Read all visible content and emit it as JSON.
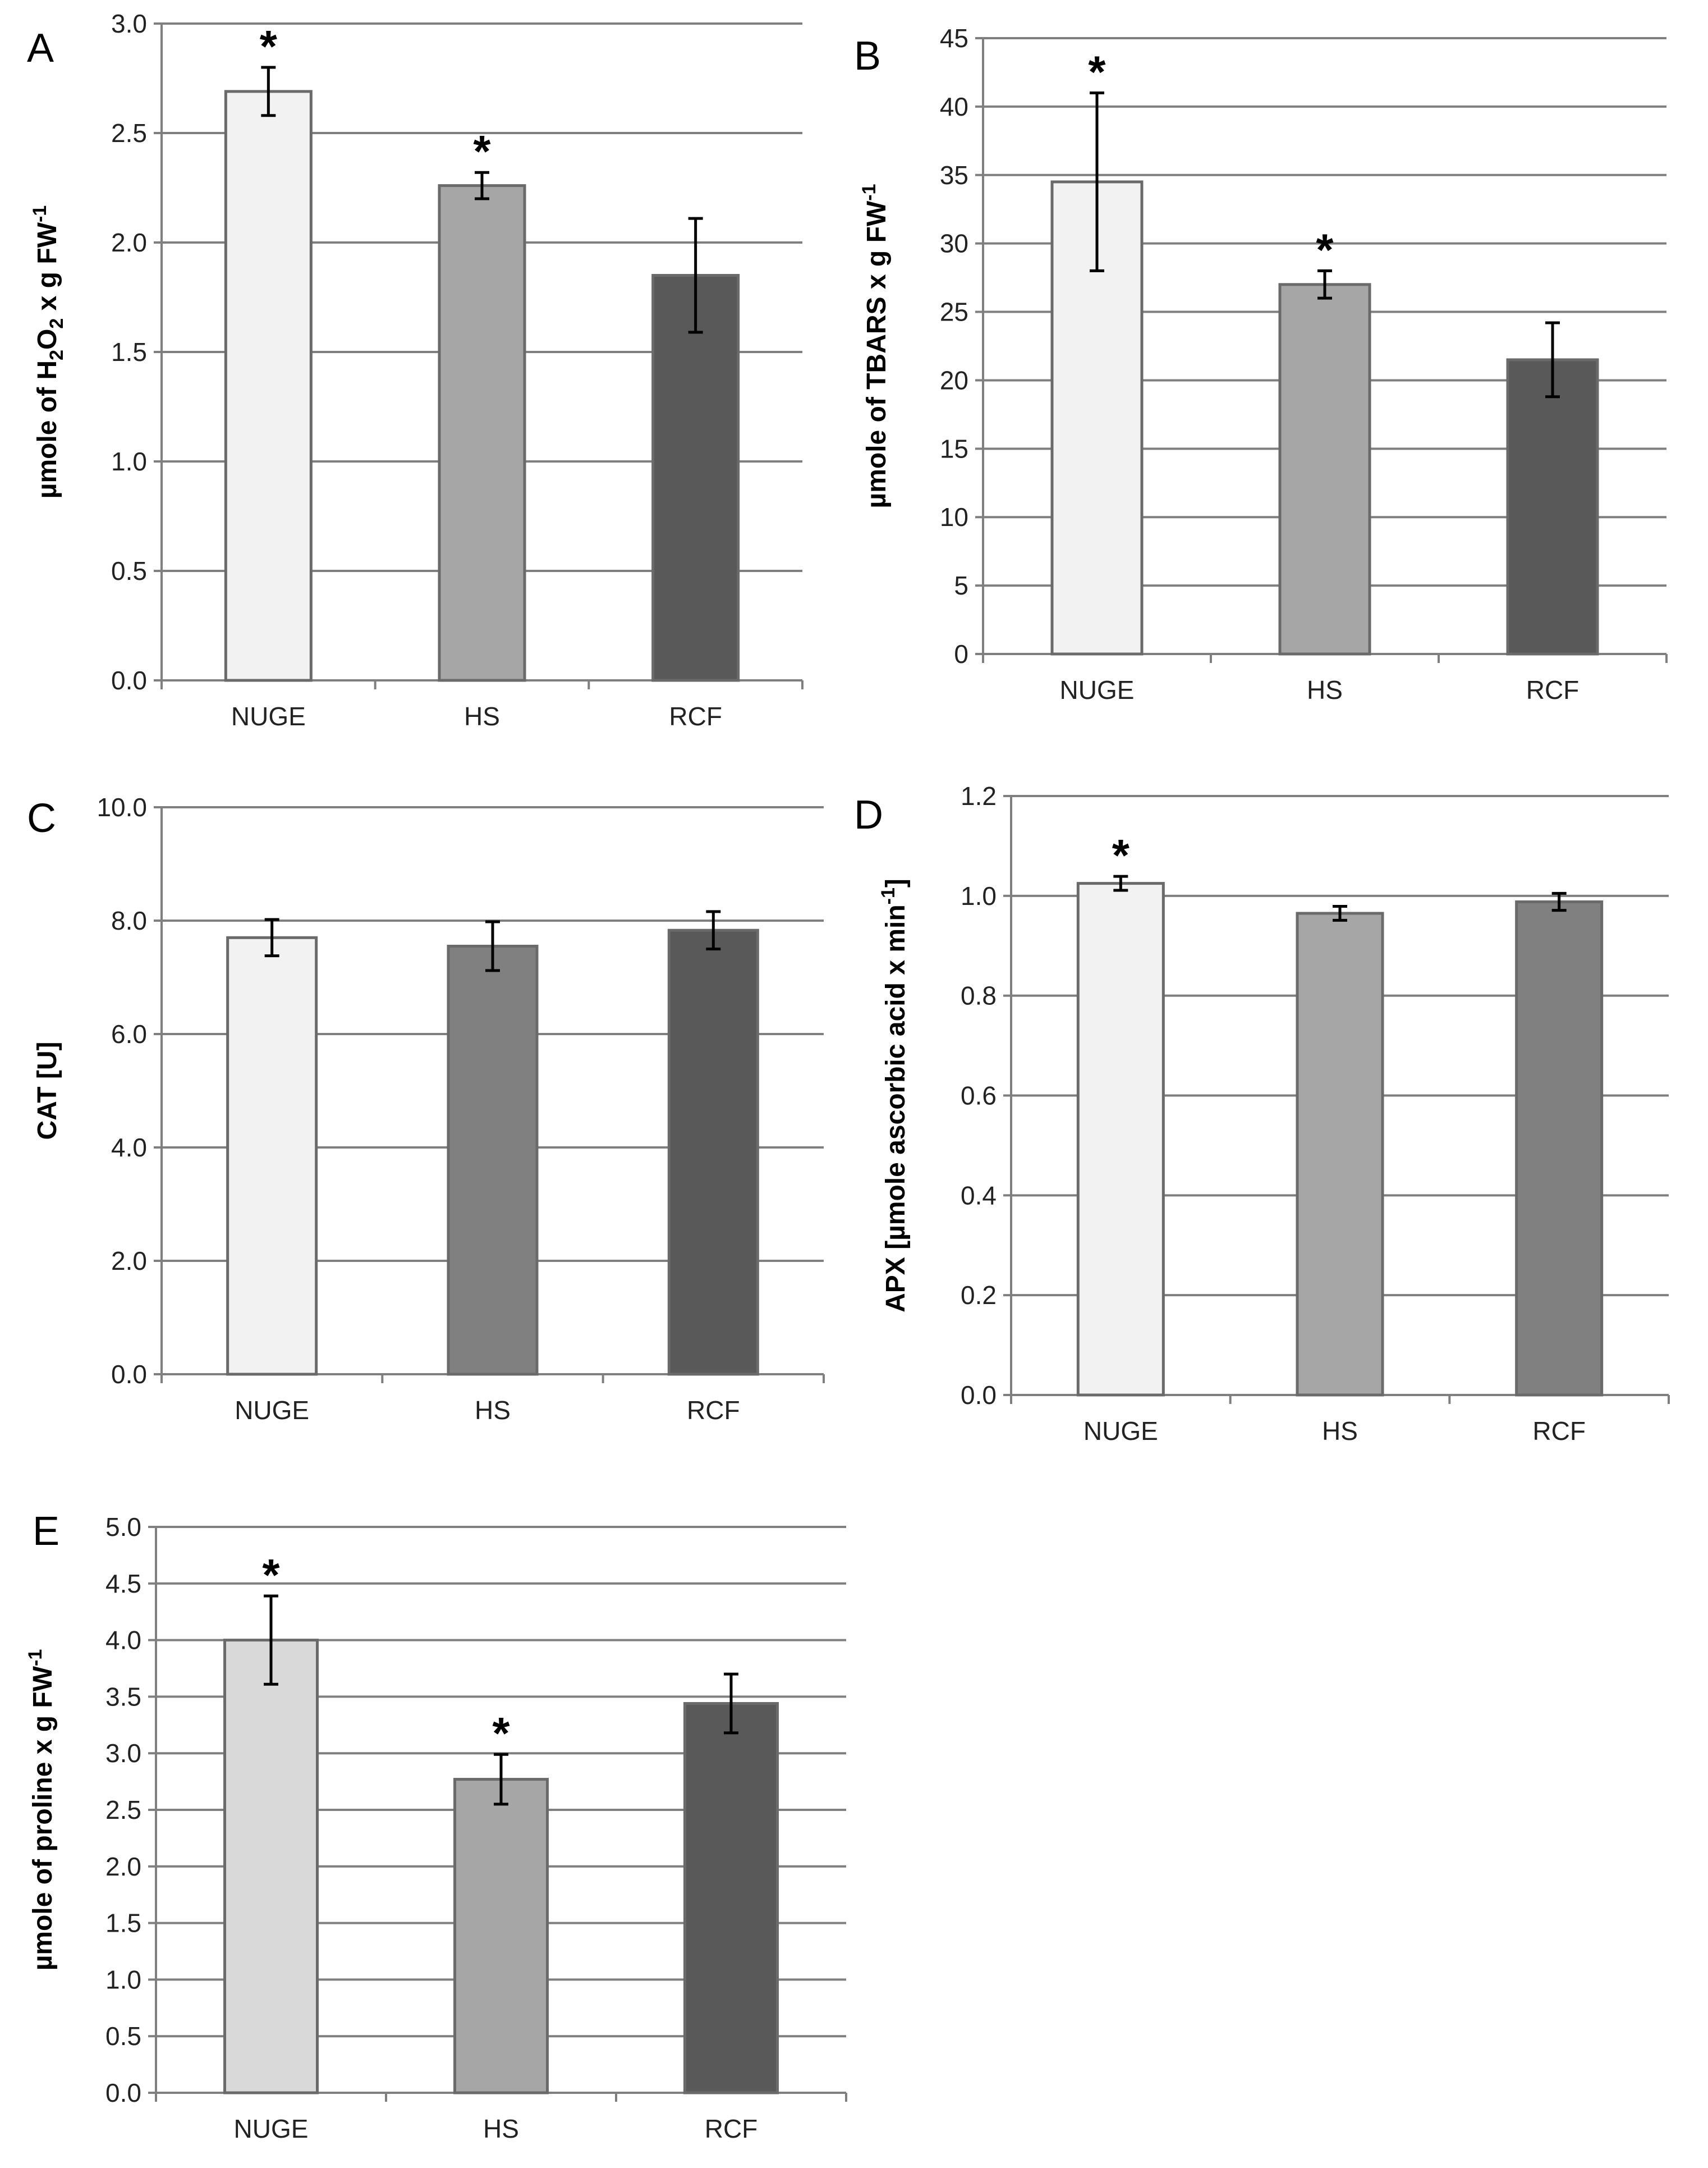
{
  "chart_data": [
    {
      "panel": "A",
      "type": "bar",
      "categories": [
        "NUGE",
        "HS",
        "RCF"
      ],
      "values": [
        2.69,
        2.26,
        1.85
      ],
      "errors": [
        0.11,
        0.06,
        0.26
      ],
      "significant": [
        true,
        true,
        false
      ],
      "colors": [
        "#f2f2f2",
        "#a6a6a6",
        "#595959"
      ],
      "ylabel_parts": [
        {
          "t": "µmole of H",
          "s": ""
        },
        {
          "t": "2",
          "s": "sub"
        },
        {
          "t": "O",
          "s": ""
        },
        {
          "t": "2",
          "s": "sub"
        },
        {
          "t": " x g FW",
          "s": ""
        },
        {
          "t": "-1",
          "s": "sup"
        }
      ],
      "ylim": [
        0,
        3.0
      ],
      "yticks": [
        "0.0",
        "0.5",
        "1.0",
        "1.5",
        "2.0",
        "2.5",
        "3.0"
      ],
      "grid": true
    },
    {
      "panel": "B",
      "type": "bar",
      "categories": [
        "NUGE",
        "HS",
        "RCF"
      ],
      "values": [
        34.5,
        27.0,
        21.5
      ],
      "errors": [
        6.5,
        1.0,
        2.7
      ],
      "significant": [
        true,
        true,
        false
      ],
      "colors": [
        "#f2f2f2",
        "#a6a6a6",
        "#595959"
      ],
      "ylabel_parts": [
        {
          "t": "µmole of TBARS x g FW",
          "s": ""
        },
        {
          "t": "-1",
          "s": "sup"
        }
      ],
      "ylim": [
        0,
        45
      ],
      "yticks": [
        "0",
        "5",
        "10",
        "15",
        "20",
        "25",
        "30",
        "35",
        "40",
        "45"
      ],
      "grid": true
    },
    {
      "panel": "C",
      "type": "bar",
      "categories": [
        "NUGE",
        "HS",
        "RCF"
      ],
      "values": [
        7.7,
        7.55,
        7.83
      ],
      "errors": [
        0.32,
        0.43,
        0.33
      ],
      "significant": [
        false,
        false,
        false
      ],
      "colors": [
        "#f2f2f2",
        "#808080",
        "#595959"
      ],
      "ylabel_parts": [
        {
          "t": "CAT [U]",
          "s": ""
        }
      ],
      "ylim": [
        0,
        10.0
      ],
      "yticks": [
        "0.0",
        "2.0",
        "4.0",
        "6.0",
        "8.0",
        "10.0"
      ],
      "grid": true
    },
    {
      "panel": "D",
      "type": "bar",
      "categories": [
        "NUGE",
        "HS",
        "RCF"
      ],
      "values": [
        1.025,
        0.965,
        0.988
      ],
      "errors": [
        0.014,
        0.014,
        0.017
      ],
      "significant": [
        true,
        false,
        false
      ],
      "colors": [
        "#f2f2f2",
        "#a6a6a6",
        "#808080"
      ],
      "ylabel_parts": [
        {
          "t": "APX [µmole ascorbic acid x min",
          "s": ""
        },
        {
          "t": "-1",
          "s": "sup"
        },
        {
          "t": "]",
          "s": ""
        }
      ],
      "ylim": [
        0,
        1.2
      ],
      "yticks": [
        "0.0",
        "0.2",
        "0.4",
        "0.6",
        "0.8",
        "1.0",
        "1.2"
      ],
      "grid": true
    },
    {
      "panel": "E",
      "type": "bar",
      "categories": [
        "NUGE",
        "HS",
        "RCF"
      ],
      "values": [
        4.0,
        2.77,
        3.44
      ],
      "errors": [
        0.39,
        0.22,
        0.26
      ],
      "significant": [
        true,
        true,
        false
      ],
      "colors": [
        "#d9d9d9",
        "#a6a6a6",
        "#595959"
      ],
      "ylabel_parts": [
        {
          "t": "µmole of proline x g FW",
          "s": ""
        },
        {
          "t": "-1",
          "s": "sup"
        }
      ],
      "ylim": [
        0,
        5.0
      ],
      "yticks": [
        "0.0",
        "0.5",
        "1.0",
        "1.5",
        "2.0",
        "2.5",
        "3.0",
        "3.5",
        "4.0",
        "4.5",
        "5.0"
      ],
      "grid": true
    }
  ]
}
